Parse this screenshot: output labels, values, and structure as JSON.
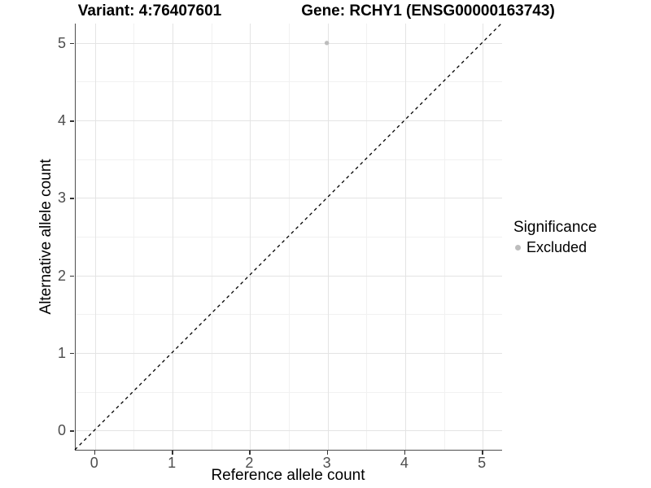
{
  "titles": {
    "variant": "Variant: 4:76407601",
    "gene": "Gene: RCHY1 (ENSG00000163743)"
  },
  "chart_data": {
    "type": "scatter",
    "title_left": "Variant: 4:76407601",
    "title_right": "Gene: RCHY1 (ENSG00000163743)",
    "xlabel": "Reference allele count",
    "ylabel": "Alternative allele count",
    "xlim": [
      -0.25,
      5.25
    ],
    "ylim": [
      -0.25,
      5.25
    ],
    "x_ticks": [
      0,
      1,
      2,
      3,
      4,
      5
    ],
    "y_ticks": [
      0,
      1,
      2,
      3,
      4,
      5
    ],
    "x_minor_ticks": [
      0.5,
      1.5,
      2.5,
      3.5,
      4.5
    ],
    "y_minor_ticks": [
      0.5,
      1.5,
      2.5,
      3.5,
      4.5
    ],
    "grid": "major+minor",
    "series": [
      {
        "name": "Excluded",
        "marker": "circle",
        "color": "#bdbdbd",
        "points": [
          {
            "x": 3,
            "y": 5
          }
        ]
      }
    ],
    "reference_line": {
      "kind": "identity y=x",
      "style": "dashed",
      "color": "#000000",
      "from": [
        -0.25,
        -0.25
      ],
      "to": [
        5.25,
        5.25
      ]
    },
    "legend": {
      "title": "Significance",
      "position": "right",
      "entries": [
        {
          "label": "Excluded",
          "color": "#bdbdbd"
        }
      ]
    }
  },
  "colors": {
    "background": "#ffffff",
    "grid_major": "#e4e4e4",
    "grid_minor": "#f1f1f1",
    "axis_line": "#4d4d4d",
    "tick_mark": "#333333",
    "tick_text": "#4d4d4d",
    "point": "#bdbdbd",
    "reference_line": "#000000"
  }
}
